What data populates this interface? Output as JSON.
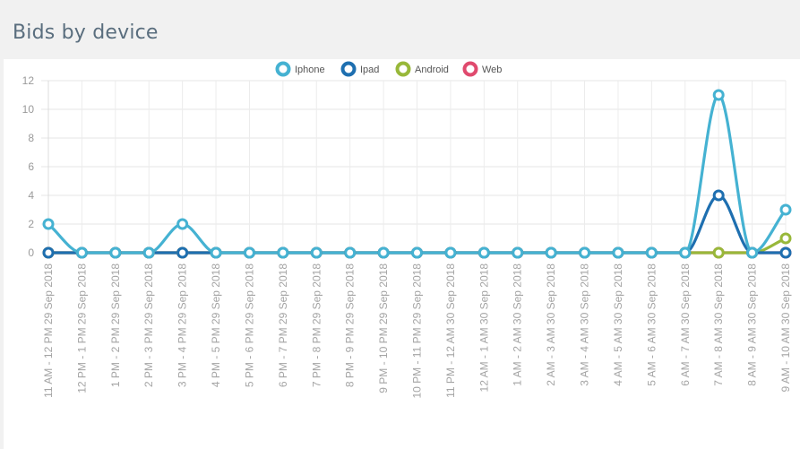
{
  "page": {
    "title": "Bids by device"
  },
  "chart_data": {
    "type": "line",
    "title": "",
    "xlabel": "",
    "ylabel": "",
    "ylim": [
      0,
      12
    ],
    "yticks": [
      0,
      2,
      4,
      6,
      8,
      10,
      12
    ],
    "grid": true,
    "legend_position": "top-center",
    "categories": [
      "11 AM - 12 PM 29 Sep 2018",
      "12 PM - 1 PM 29 Sep 2018",
      "1 PM - 2 PM 29 Sep 2018",
      "2 PM - 3 PM 29 Sep 2018",
      "3 PM - 4 PM 29 Sep 2018",
      "4 PM - 5 PM 29 Sep 2018",
      "5 PM - 6 PM 29 Sep 2018",
      "6 PM - 7 PM 29 Sep 2018",
      "7 PM - 8 PM 29 Sep 2018",
      "8 PM - 9 PM 29 Sep 2018",
      "9 PM - 10 PM 29 Sep 2018",
      "10 PM - 11 PM 29 Sep 2018",
      "11 PM - 12 AM 30 Sep 2018",
      "12 AM - 1 AM 30 Sep 2018",
      "1 AM - 2 AM 30 Sep 2018",
      "2 AM - 3 AM 30 Sep 2018",
      "3 AM - 4 AM 30 Sep 2018",
      "4 AM - 5 AM 30 Sep 2018",
      "5 AM - 6 AM 30 Sep 2018",
      "6 AM - 7 AM 30 Sep 2018",
      "7 AM - 8 AM 30 Sep 2018",
      "8 AM - 9 AM 30 Sep 2018",
      "9 AM - 10 AM 30 Sep 2018"
    ],
    "series": [
      {
        "name": "Iphone",
        "color": "#45b2d2",
        "values": [
          2,
          0,
          0,
          0,
          2,
          0,
          0,
          0,
          0,
          0,
          0,
          0,
          0,
          0,
          0,
          0,
          0,
          0,
          0,
          0,
          11,
          0,
          3
        ]
      },
      {
        "name": "Ipad",
        "color": "#1e6fb0",
        "values": [
          0,
          0,
          0,
          0,
          0,
          0,
          0,
          0,
          0,
          0,
          0,
          0,
          0,
          0,
          0,
          0,
          0,
          0,
          0,
          0,
          4,
          0,
          0
        ]
      },
      {
        "name": "Android",
        "color": "#98b83a",
        "values": [
          0,
          0,
          0,
          0,
          0,
          0,
          0,
          0,
          0,
          0,
          0,
          0,
          0,
          0,
          0,
          0,
          0,
          0,
          0,
          0,
          0,
          0,
          1
        ]
      },
      {
        "name": "Web",
        "color": "#e04a6e",
        "values": [
          0,
          0,
          0,
          0,
          0,
          0,
          0,
          0,
          0,
          0,
          0,
          0,
          0,
          0,
          0,
          0,
          0,
          0,
          0,
          0,
          0,
          0,
          0
        ]
      }
    ]
  }
}
